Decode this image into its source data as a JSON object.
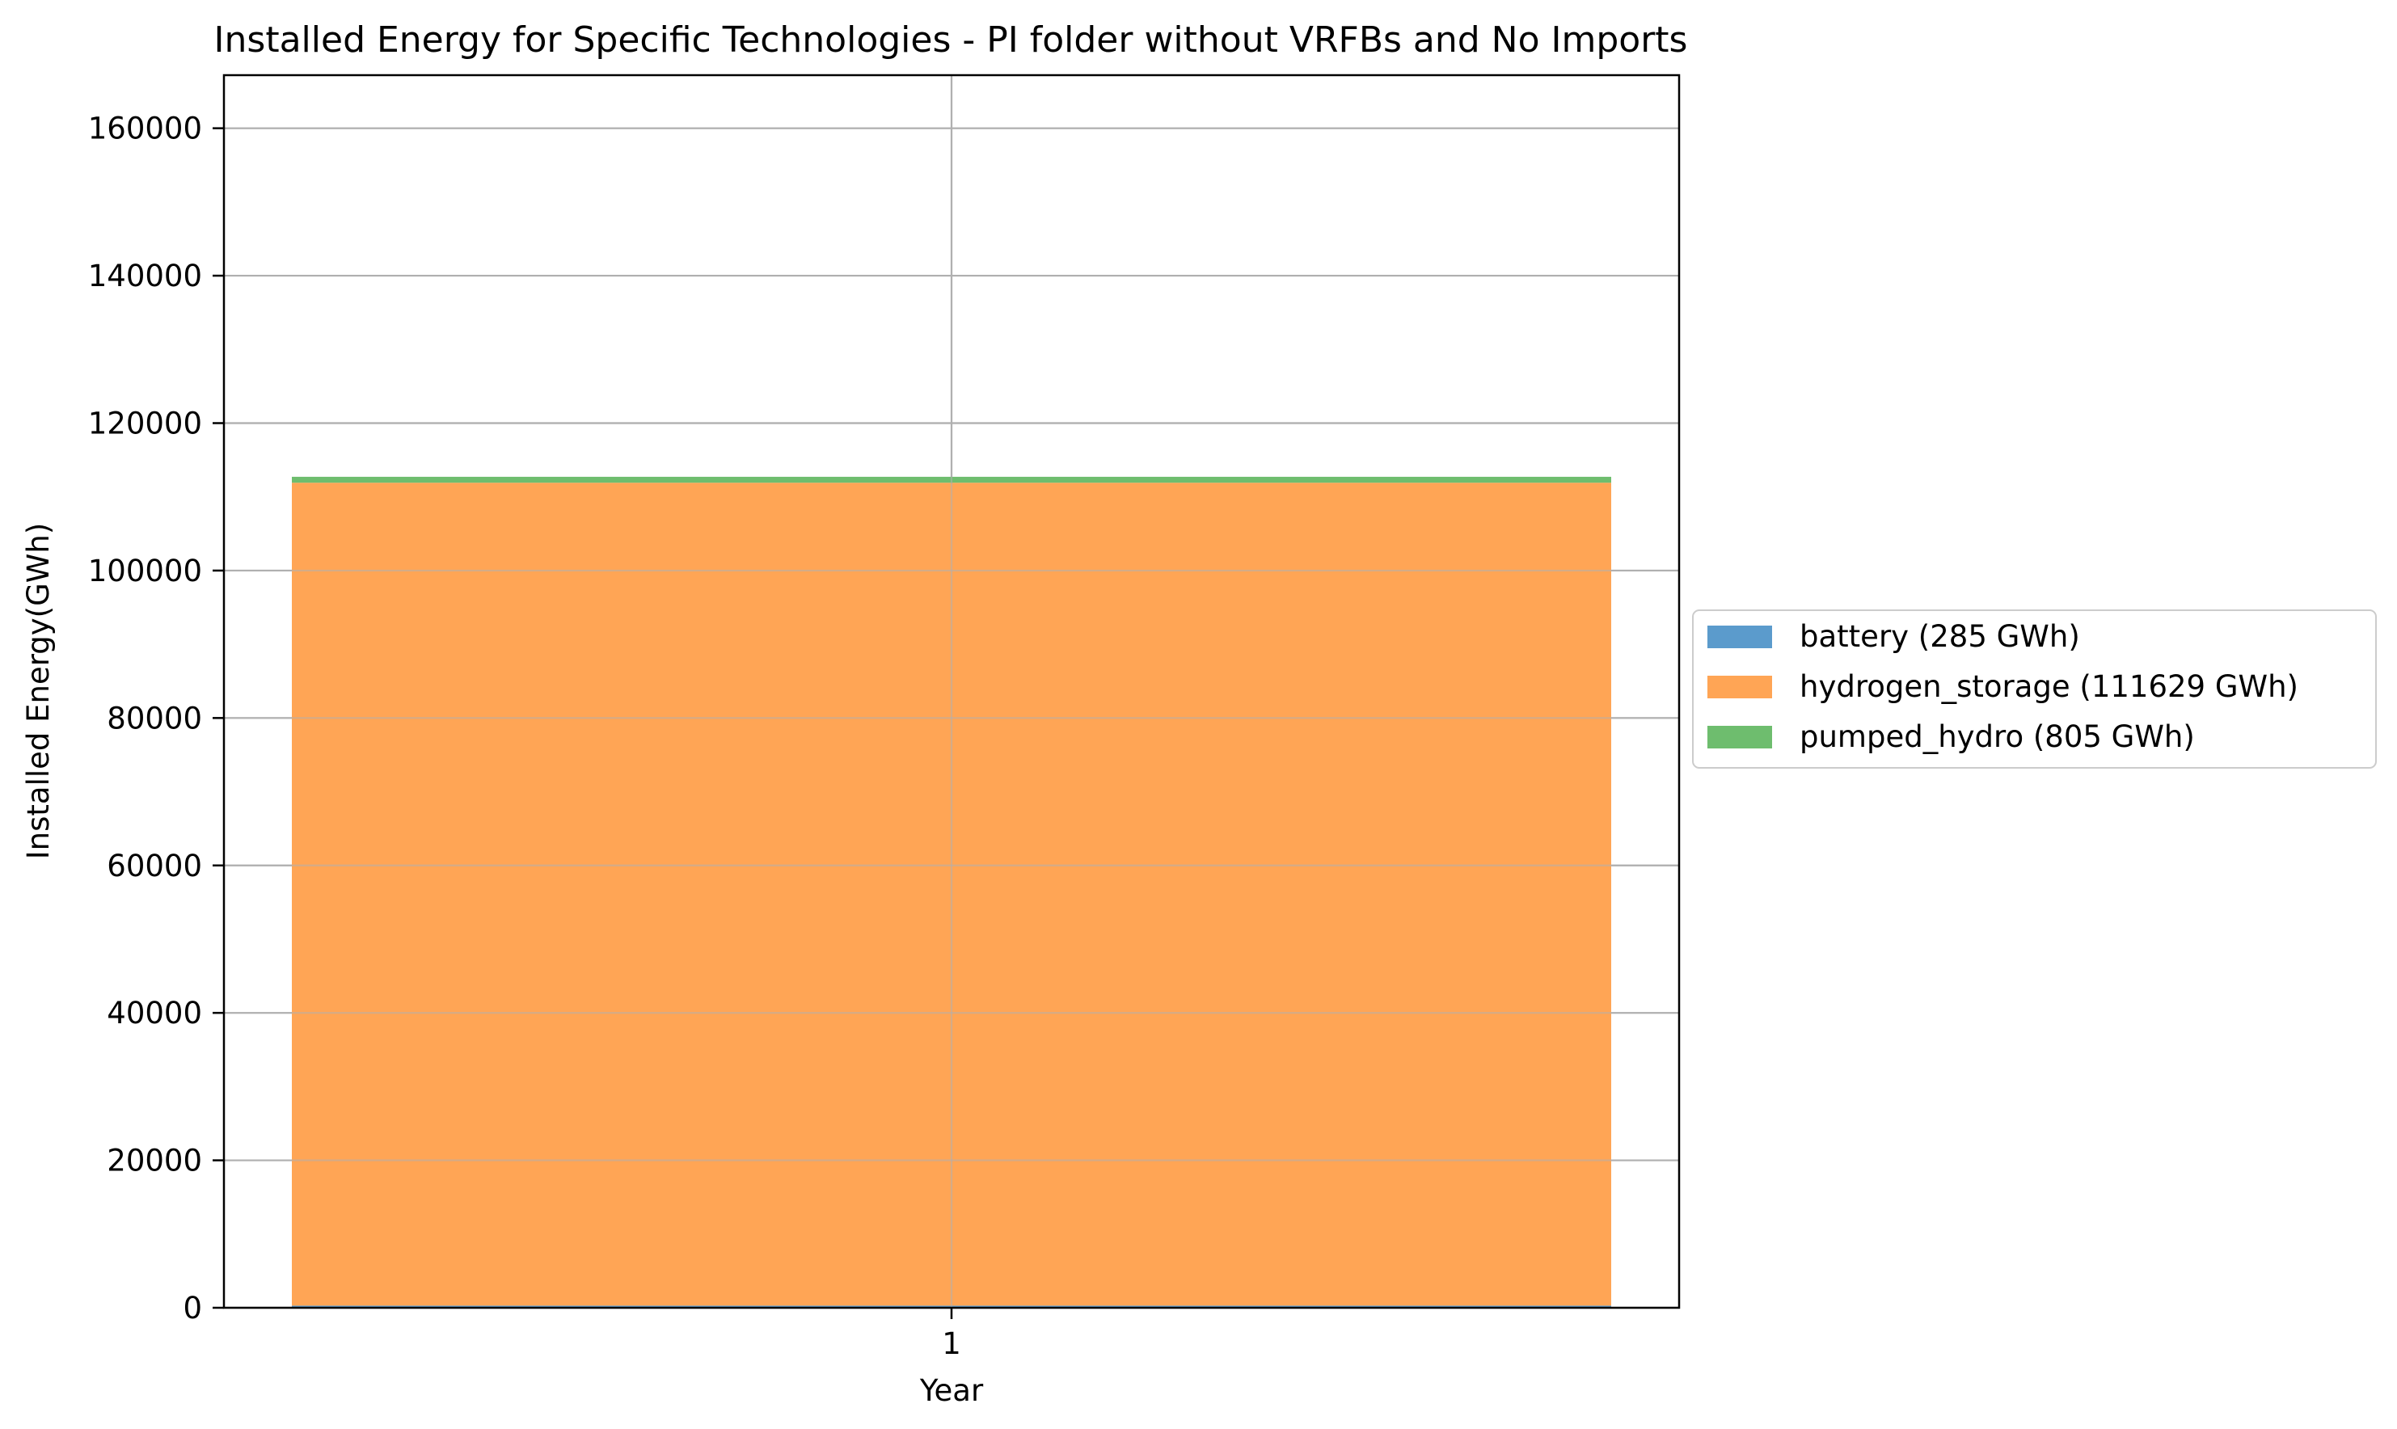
{
  "chart_data": {
    "type": "bar",
    "title": "Installed Energy for Specific Technologies - PI folder without VRFBs and No Imports",
    "xlabel": "Year",
    "ylabel": "Installed Energy(GWh)",
    "categories": [
      "1"
    ],
    "ylim": [
      0,
      167200
    ],
    "yticks": [
      0,
      20000,
      40000,
      60000,
      80000,
      100000,
      120000,
      140000,
      160000
    ],
    "yticks_labels": [
      "0",
      "20000",
      "40000",
      "60000",
      "80000",
      "100000",
      "120000",
      "140000",
      "160000"
    ],
    "stacked": true,
    "grid": true,
    "legend_position": "center-right-outside",
    "series": [
      {
        "name": "battery (285 GWh)",
        "values": [
          285
        ],
        "color": "#5b9bcc"
      },
      {
        "name": "hydrogen_storage (111629 GWh)",
        "values": [
          111629
        ],
        "color": "#ffa555"
      },
      {
        "name": "pumped_hydro (805 GWh)",
        "values": [
          805
        ],
        "color": "#6ebd6e"
      }
    ]
  }
}
